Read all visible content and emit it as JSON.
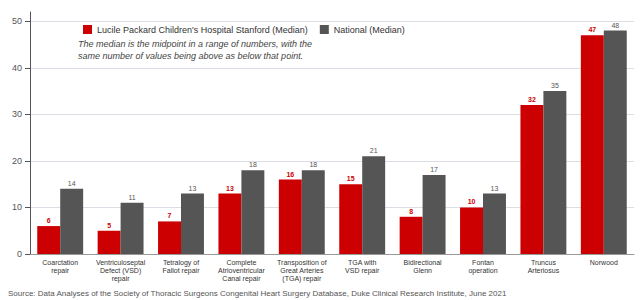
{
  "chart_data": {
    "type": "bar",
    "categories": [
      "Coarctation\nrepair",
      "Ventriculoseptal\nDefect (VSD)\nrepair",
      "Tetralogy of\nFallot repair",
      "Complete\nAtrioventricular\nCanal repair",
      "Transposition of\nGreat Arteries\n(TGA) repair",
      "TGA with\nVSD repair",
      "Bidirectional\nGlenn",
      "Fontan\noperation",
      "Truncus\nArteriosus",
      "Norwood"
    ],
    "series": [
      {
        "name": "Lucile Packard Children's Hospital Stanford (Median)",
        "color": "#CC0000",
        "values": [
          6,
          5,
          7,
          13,
          16,
          15,
          8,
          10,
          32,
          47
        ]
      },
      {
        "name": "National (Median)",
        "color": "#555555",
        "values": [
          14,
          11,
          13,
          18,
          18,
          21,
          17,
          13,
          35,
          48
        ]
      }
    ],
    "ylim": [
      0,
      52
    ],
    "yticks": [
      0,
      10,
      20,
      30,
      40,
      50
    ],
    "grid": true,
    "legend": "upper left",
    "data_labels": true,
    "subtitle": "The median is the midpoint in a range of numbers, with the\nsame number of values being above as below that point.",
    "annotations": [
      "Source: Data Analyses of the Society of Thoracic Surgeons Congenital Heart Surgery Database, Duke Clinical Research Institute, June 2021"
    ]
  }
}
